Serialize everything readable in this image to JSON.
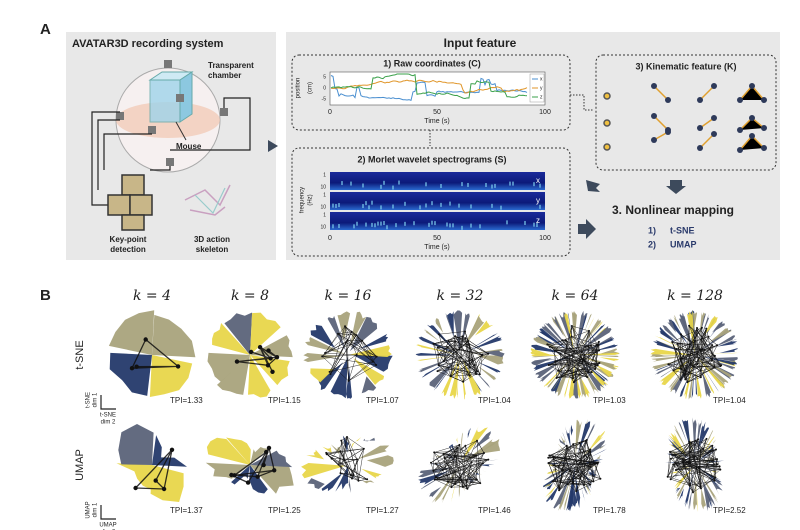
{
  "panel_a": {
    "label": "A",
    "recording": {
      "title": "AVATAR3D recording system",
      "chamber": [
        "Transparent",
        "chamber"
      ],
      "mouse": "Mouse",
      "key_point": [
        "Key-point",
        "detection"
      ],
      "skeleton": [
        "3D action",
        "skeleton"
      ]
    },
    "input": {
      "title": "Input feature",
      "raw": {
        "title": "1) Raw coordinates (C)",
        "ylabel": [
          "position",
          "(cm)"
        ],
        "yticks": [
          "5",
          "0",
          "-5"
        ],
        "xticks": [
          "0",
          "50",
          "100"
        ],
        "xlabel": "Time (s)",
        "legend": [
          "x",
          "y",
          "z"
        ]
      },
      "wavelet": {
        "title": "2) Morlet wavelet spectrograms (S)",
        "ylabel": [
          "frequency",
          "(Hz)"
        ],
        "yticks": [
          "1",
          "10"
        ],
        "bands": [
          "x",
          "y",
          "z"
        ],
        "xticks": [
          "0",
          "50",
          "100"
        ],
        "xlabel": "Time (s)"
      },
      "kinematic": {
        "title": "3) Kinematic feature (K)"
      }
    },
    "mapping": {
      "title": "3. Nonlinear mapping",
      "items": [
        {
          "num": "1)",
          "name": "t-SNE"
        },
        {
          "num": "2)",
          "name": "UMAP"
        }
      ]
    }
  },
  "panel_b": {
    "label": "B",
    "k_labels": [
      "k = 4",
      "k = 8",
      "k = 16",
      "k = 32",
      "k = 64",
      "k = 128"
    ],
    "rows": [
      {
        "label": "t-SNE",
        "axis_y": [
          "t-SNE",
          "dim 1"
        ],
        "axis_x": [
          "t-SNE",
          "dim 2"
        ],
        "tpi": [
          "TPI=1.33",
          "TPI=1.15",
          "TPI=1.07",
          "TPI=1.04",
          "TPI=1.03",
          "TPI=1.04"
        ]
      },
      {
        "label": "UMAP",
        "axis_y": [
          "UMAP",
          "dim 1"
        ],
        "axis_x": [
          "UMAP",
          "dim 2"
        ],
        "tpi": [
          "TPI=1.37",
          "TPI=1.25",
          "TPI=1.27",
          "TPI=1.46",
          "TPI=1.78",
          "TPI=2.52"
        ]
      }
    ]
  }
}
